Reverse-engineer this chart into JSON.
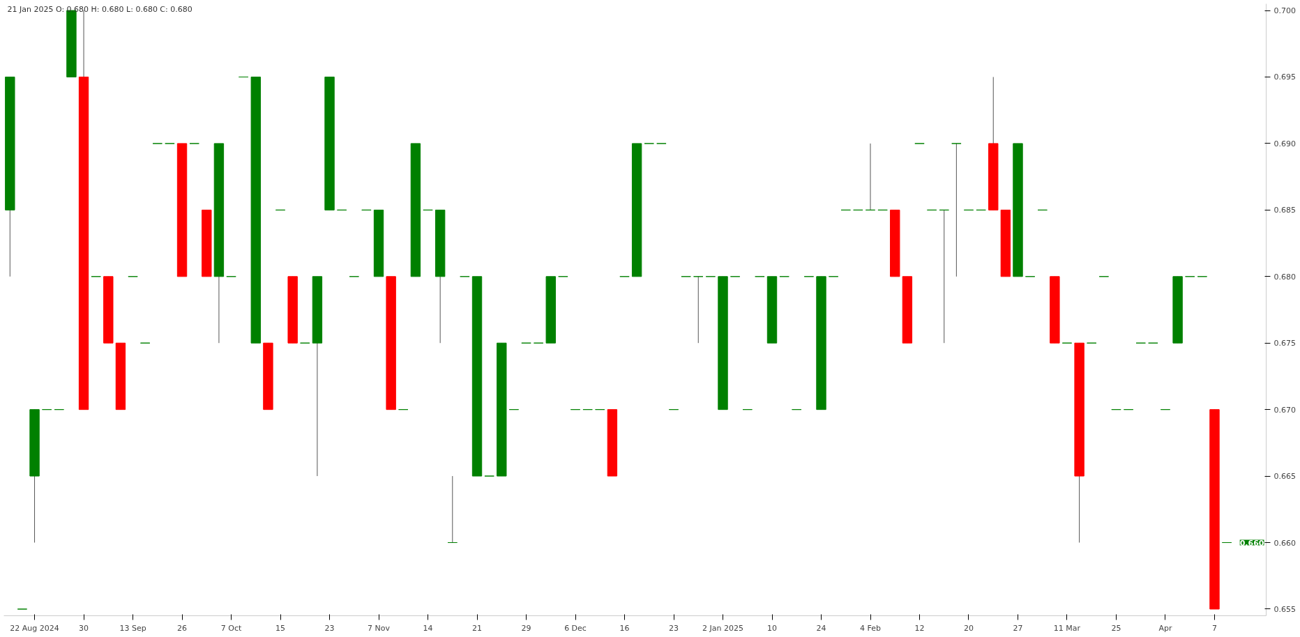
{
  "chart_data": {
    "type": "candlestick",
    "categories": [
      null,
      null,
      "22 Aug 2024",
      null,
      null,
      null,
      "30",
      null,
      null,
      null,
      "13 Sep",
      null,
      null,
      null,
      "26",
      null,
      null,
      null,
      "7 Oct",
      null,
      null,
      null,
      "15",
      null,
      null,
      null,
      "23",
      null,
      null,
      null,
      "7 Nov",
      null,
      null,
      null,
      "14",
      null,
      null,
      null,
      "21",
      null,
      null,
      null,
      "29",
      null,
      null,
      null,
      "6 Dec",
      null,
      null,
      null,
      "16",
      null,
      null,
      null,
      "23",
      null,
      null,
      null,
      "2 Jan 2025",
      null,
      null,
      null,
      "10",
      null,
      null,
      null,
      "24",
      null,
      null,
      null,
      "4 Feb",
      null,
      null,
      null,
      "12",
      null,
      null,
      null,
      "20",
      null,
      null,
      null,
      "27",
      null,
      null,
      null,
      "11 Mar",
      null,
      null,
      null,
      "25",
      null,
      null,
      null,
      "Apr",
      null,
      null,
      null,
      "7",
      null
    ],
    "ohlc": [
      [
        0.685,
        0.695,
        0.68,
        0.695
      ],
      [
        0.655,
        0.655,
        0.655,
        0.655
      ],
      [
        0.665,
        0.67,
        0.66,
        0.67
      ],
      [
        0.67,
        0.67,
        0.67,
        0.67
      ],
      [
        0.67,
        0.67,
        0.67,
        0.67
      ],
      [
        0.695,
        0.7,
        0.695,
        0.7
      ],
      [
        0.695,
        0.7,
        0.67,
        0.67
      ],
      [
        0.68,
        0.68,
        0.68,
        0.68
      ],
      [
        0.68,
        0.68,
        0.675,
        0.675
      ],
      [
        0.675,
        0.675,
        0.67,
        0.67
      ],
      [
        0.68,
        0.68,
        0.68,
        0.68
      ],
      [
        0.675,
        0.675,
        0.675,
        0.675
      ],
      [
        0.69,
        0.69,
        0.69,
        0.69
      ],
      [
        0.69,
        0.69,
        0.69,
        0.69
      ],
      [
        0.69,
        0.69,
        0.68,
        0.68
      ],
      [
        0.69,
        0.69,
        0.69,
        0.69
      ],
      [
        0.685,
        0.685,
        0.68,
        0.68
      ],
      [
        0.68,
        0.69,
        0.675,
        0.69
      ],
      [
        0.68,
        0.68,
        0.68,
        0.68
      ],
      [
        0.695,
        0.695,
        0.695,
        0.695
      ],
      [
        0.675,
        0.695,
        0.675,
        0.695
      ],
      [
        0.675,
        0.675,
        0.67,
        0.67
      ],
      [
        0.685,
        0.685,
        0.685,
        0.685
      ],
      [
        0.68,
        0.68,
        0.675,
        0.675
      ],
      [
        0.675,
        0.675,
        0.675,
        0.675
      ],
      [
        0.675,
        0.68,
        0.665,
        0.68
      ],
      [
        0.685,
        0.695,
        0.685,
        0.695
      ],
      [
        0.685,
        0.685,
        0.685,
        0.685
      ],
      [
        0.68,
        0.68,
        0.68,
        0.68
      ],
      [
        0.685,
        0.685,
        0.685,
        0.685
      ],
      [
        0.68,
        0.685,
        0.68,
        0.685
      ],
      [
        0.68,
        0.68,
        0.67,
        0.67
      ],
      [
        0.67,
        0.67,
        0.67,
        0.67
      ],
      [
        0.68,
        0.69,
        0.68,
        0.69
      ],
      [
        0.685,
        0.685,
        0.685,
        0.685
      ],
      [
        0.68,
        0.685,
        0.675,
        0.685
      ],
      [
        0.66,
        0.665,
        0.66,
        0.66
      ],
      [
        0.68,
        0.68,
        0.68,
        0.68
      ],
      [
        0.665,
        0.68,
        0.665,
        0.68
      ],
      [
        0.665,
        0.665,
        0.665,
        0.665
      ],
      [
        0.665,
        0.675,
        0.665,
        0.675
      ],
      [
        0.67,
        0.67,
        0.67,
        0.67
      ],
      [
        0.675,
        0.675,
        0.675,
        0.675
      ],
      [
        0.675,
        0.675,
        0.675,
        0.675
      ],
      [
        0.675,
        0.68,
        0.675,
        0.68
      ],
      [
        0.68,
        0.68,
        0.68,
        0.68
      ],
      [
        0.67,
        0.67,
        0.67,
        0.67
      ],
      [
        0.67,
        0.67,
        0.67,
        0.67
      ],
      [
        0.67,
        0.67,
        0.67,
        0.67
      ],
      [
        0.67,
        0.67,
        0.665,
        0.665
      ],
      [
        0.68,
        0.68,
        0.68,
        0.68
      ],
      [
        0.68,
        0.69,
        0.68,
        0.69
      ],
      [
        0.69,
        0.69,
        0.69,
        0.69
      ],
      [
        0.69,
        0.69,
        0.69,
        0.69
      ],
      [
        0.67,
        0.67,
        0.67,
        0.67
      ],
      [
        0.68,
        0.68,
        0.68,
        0.68
      ],
      [
        0.68,
        0.68,
        0.675,
        0.68
      ],
      [
        0.68,
        0.68,
        0.68,
        0.68
      ],
      [
        0.67,
        0.68,
        0.67,
        0.68
      ],
      [
        0.68,
        0.68,
        0.68,
        0.68
      ],
      [
        0.67,
        0.67,
        0.67,
        0.67
      ],
      [
        0.68,
        0.68,
        0.68,
        0.68
      ],
      [
        0.675,
        0.68,
        0.675,
        0.68
      ],
      [
        0.68,
        0.68,
        0.68,
        0.68
      ],
      [
        0.67,
        0.67,
        0.67,
        0.67
      ],
      [
        0.68,
        0.68,
        0.68,
        0.68
      ],
      [
        0.67,
        0.68,
        0.67,
        0.68
      ],
      [
        0.68,
        0.68,
        0.68,
        0.68
      ],
      [
        0.685,
        0.685,
        0.685,
        0.685
      ],
      [
        0.685,
        0.685,
        0.685,
        0.685
      ],
      [
        0.685,
        0.69,
        0.685,
        0.685
      ],
      [
        0.685,
        0.685,
        0.685,
        0.685
      ],
      [
        0.685,
        0.685,
        0.68,
        0.68
      ],
      [
        0.68,
        0.68,
        0.675,
        0.675
      ],
      [
        0.69,
        0.69,
        0.69,
        0.69
      ],
      [
        0.685,
        0.685,
        0.685,
        0.685
      ],
      [
        0.685,
        0.685,
        0.675,
        0.685
      ],
      [
        0.69,
        0.69,
        0.68,
        0.69
      ],
      [
        0.685,
        0.685,
        0.685,
        0.685
      ],
      [
        0.685,
        0.685,
        0.685,
        0.685
      ],
      [
        0.69,
        0.695,
        0.685,
        0.685
      ],
      [
        0.685,
        0.685,
        0.68,
        0.68
      ],
      [
        0.68,
        0.69,
        0.68,
        0.69
      ],
      [
        0.68,
        0.68,
        0.68,
        0.68
      ],
      [
        0.685,
        0.685,
        0.685,
        0.685
      ],
      [
        0.68,
        0.68,
        0.675,
        0.675
      ],
      [
        0.675,
        0.675,
        0.675,
        0.675
      ],
      [
        0.675,
        0.675,
        0.66,
        0.665
      ],
      [
        0.675,
        0.675,
        0.675,
        0.675
      ],
      [
        0.68,
        0.68,
        0.68,
        0.68
      ],
      [
        0.67,
        0.67,
        0.67,
        0.67
      ],
      [
        0.67,
        0.67,
        0.67,
        0.67
      ],
      [
        0.675,
        0.675,
        0.675,
        0.675
      ],
      [
        0.675,
        0.675,
        0.675,
        0.675
      ],
      [
        0.67,
        0.67,
        0.67,
        0.67
      ],
      [
        0.675,
        0.68,
        0.675,
        0.68
      ],
      [
        0.68,
        0.68,
        0.68,
        0.68
      ],
      [
        0.68,
        0.68,
        0.68,
        0.68
      ],
      [
        0.67,
        0.67,
        0.655,
        0.655
      ],
      [
        0.66,
        0.66,
        0.66,
        0.66
      ]
    ],
    "colors": [
      "#008000",
      "#008000",
      "#008000",
      "#008000",
      "#008000",
      "#008000",
      "#ff0000",
      "#008000",
      "#ff0000",
      "#ff0000",
      "#008000",
      "#008000",
      "#008000",
      "#008000",
      "#ff0000",
      "#008000",
      "#ff0000",
      "#008000",
      "#008000",
      "#008000",
      "#008000",
      "#ff0000",
      "#008000",
      "#ff0000",
      "#008000",
      "#008000",
      "#008000",
      "#008000",
      "#008000",
      "#008000",
      "#008000",
      "#ff0000",
      "#008000",
      "#008000",
      "#008000",
      "#008000",
      "#008000",
      "#008000",
      "#008000",
      "#008000",
      "#008000",
      "#008000",
      "#008000",
      "#008000",
      "#008000",
      "#008000",
      "#008000",
      "#008000",
      "#008000",
      "#ff0000",
      "#008000",
      "#008000",
      "#008000",
      "#008000",
      "#008000",
      "#008000",
      "#008000",
      "#008000",
      "#008000",
      "#008000",
      "#008000",
      "#008000",
      "#008000",
      "#008000",
      "#008000",
      "#008000",
      "#008000",
      "#008000",
      "#008000",
      "#008000",
      "#008000",
      "#008000",
      "#ff0000",
      "#ff0000",
      "#008000",
      "#008000",
      "#008000",
      "#008000",
      "#008000",
      "#008000",
      "#ff0000",
      "#ff0000",
      "#008000",
      "#008000",
      "#008000",
      "#ff0000",
      "#008000",
      "#ff0000",
      "#008000",
      "#008000",
      "#008000",
      "#008000",
      "#008000",
      "#008000",
      "#008000",
      "#008000",
      "#008000",
      "#008000",
      "#ff0000",
      "#008000"
    ],
    "ylim": [
      0.6545,
      0.7005
    ],
    "yticks": [
      {
        "value": 0.655,
        "label": "0.655"
      },
      {
        "value": 0.66,
        "label": "0.660"
      },
      {
        "value": 0.665,
        "label": "0.665"
      },
      {
        "value": 0.67,
        "label": "0.670"
      },
      {
        "value": 0.675,
        "label": "0.675"
      },
      {
        "value": 0.68,
        "label": "0.680"
      },
      {
        "value": 0.685,
        "label": "0.685"
      },
      {
        "value": 0.69,
        "label": "0.690"
      },
      {
        "value": 0.695,
        "label": "0.695"
      },
      {
        "value": 0.7,
        "label": "0.700"
      }
    ],
    "grid": false,
    "annotations": [
      "21 Jan 2025   O: 0.680   H: 0.680   L: 0.680   C: 0.680",
      "0.660"
    ]
  }
}
